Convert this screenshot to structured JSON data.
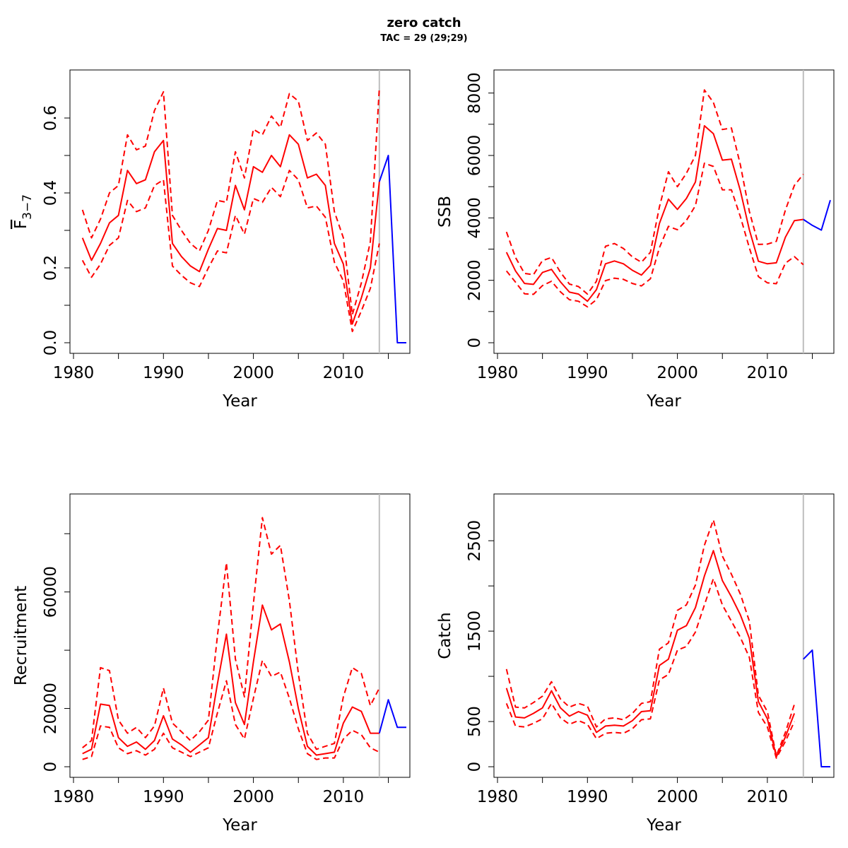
{
  "title": "zero catch",
  "subtitle": "TAC = 29 (29;29)",
  "colors": {
    "estimate": "#ff0000",
    "forecast": "#0000ff",
    "divider": "#bebebe",
    "axis": "#000000"
  },
  "chart_data": [
    {
      "type": "line",
      "panel": "top-left",
      "ylabel_main": "F",
      "ylabel_sub": "3−7",
      "xlabel": "Year",
      "xlim": [
        1980,
        2017
      ],
      "ylim": [
        0,
        0.7
      ],
      "x_ticks": [
        1980,
        1990,
        2000,
        2010
      ],
      "y_ticks": [
        0.0,
        0.2,
        0.4,
        0.6
      ],
      "y_tick_labels": [
        "0.0",
        "0.2",
        "0.4",
        "0.6"
      ],
      "y_minor_ticks": [
        0.1,
        0.3,
        0.5
      ],
      "divider_x": 2014,
      "series": [
        {
          "role": "estimate",
          "x": [
            1981,
            1982,
            1983,
            1984,
            1985,
            1986,
            1987,
            1988,
            1989,
            1990,
            1991,
            1992,
            1993,
            1994,
            1995,
            1996,
            1997,
            1998,
            1999,
            2000,
            2001,
            2002,
            2003,
            2004,
            2005,
            2006,
            2007,
            2008,
            2009,
            2010,
            2011,
            2012,
            2013,
            2014
          ],
          "values": [
            0.28,
            0.22,
            0.265,
            0.32,
            0.34,
            0.46,
            0.425,
            0.435,
            0.51,
            0.54,
            0.265,
            0.23,
            0.205,
            0.19,
            0.25,
            0.305,
            0.3,
            0.42,
            0.355,
            0.47,
            0.455,
            0.5,
            0.47,
            0.555,
            0.53,
            0.44,
            0.45,
            0.42,
            0.265,
            0.21,
            0.05,
            0.12,
            0.2,
            0.43
          ]
        },
        {
          "role": "upper",
          "x": [
            1981,
            1982,
            1983,
            1984,
            1985,
            1986,
            1987,
            1988,
            1989,
            1990,
            1991,
            1992,
            1993,
            1994,
            1995,
            1996,
            1997,
            1998,
            1999,
            2000,
            2001,
            2002,
            2003,
            2004,
            2005,
            2006,
            2007,
            2008,
            2009,
            2010,
            2011,
            2012,
            2013,
            2014
          ],
          "values": [
            0.355,
            0.28,
            0.33,
            0.4,
            0.42,
            0.555,
            0.515,
            0.525,
            0.62,
            0.67,
            0.34,
            0.3,
            0.265,
            0.245,
            0.3,
            0.38,
            0.375,
            0.51,
            0.44,
            0.57,
            0.555,
            0.605,
            0.575,
            0.665,
            0.645,
            0.54,
            0.56,
            0.53,
            0.35,
            0.28,
            0.075,
            0.16,
            0.27,
            0.68
          ]
        },
        {
          "role": "lower",
          "x": [
            1981,
            1982,
            1983,
            1984,
            1985,
            1986,
            1987,
            1988,
            1989,
            1990,
            1991,
            1992,
            1993,
            1994,
            1995,
            1996,
            1997,
            1998,
            1999,
            2000,
            2001,
            2002,
            2003,
            2004,
            2005,
            2006,
            2007,
            2008,
            2009,
            2010,
            2011,
            2012,
            2013,
            2014
          ],
          "values": [
            0.22,
            0.175,
            0.21,
            0.26,
            0.28,
            0.38,
            0.35,
            0.36,
            0.42,
            0.435,
            0.205,
            0.18,
            0.16,
            0.15,
            0.2,
            0.245,
            0.24,
            0.34,
            0.29,
            0.385,
            0.375,
            0.415,
            0.39,
            0.46,
            0.435,
            0.36,
            0.365,
            0.335,
            0.215,
            0.165,
            0.03,
            0.085,
            0.145,
            0.265
          ]
        },
        {
          "role": "forecast",
          "x": [
            2014,
            2015,
            2016,
            2017
          ],
          "values": [
            0.43,
            0.5,
            0.0,
            0.0
          ]
        }
      ]
    },
    {
      "type": "line",
      "panel": "top-right",
      "ylabel_main": "SSB",
      "ylabel_sub": "",
      "xlabel": "Year",
      "xlim": [
        1980,
        2017
      ],
      "ylim": [
        0,
        8400
      ],
      "x_ticks": [
        1980,
        1990,
        2000,
        2010
      ],
      "y_ticks": [
        0,
        2000,
        4000,
        6000,
        8000
      ],
      "y_tick_labels": [
        "0",
        "2000",
        "4000",
        "6000",
        "8000"
      ],
      "y_minor_ticks": [
        1000,
        3000,
        5000,
        7000
      ],
      "divider_x": 2014,
      "series": [
        {
          "role": "estimate",
          "x": [
            1981,
            1982,
            1983,
            1984,
            1985,
            1986,
            1987,
            1988,
            1989,
            1990,
            1991,
            1992,
            1993,
            1994,
            1995,
            1996,
            1997,
            1998,
            1999,
            2000,
            2001,
            2002,
            2003,
            2004,
            2005,
            2006,
            2007,
            2008,
            2009,
            2010,
            2011,
            2012,
            2013,
            2014
          ],
          "values": [
            2900,
            2300,
            1900,
            1870,
            2250,
            2350,
            1950,
            1620,
            1560,
            1330,
            1700,
            2530,
            2620,
            2530,
            2320,
            2170,
            2480,
            3820,
            4600,
            4270,
            4620,
            5150,
            6950,
            6700,
            5850,
            5880,
            4870,
            3620,
            2610,
            2530,
            2560,
            3380,
            3910,
            3950
          ]
        },
        {
          "role": "upper",
          "x": [
            1981,
            1982,
            1983,
            1984,
            1985,
            1986,
            1987,
            1988,
            1989,
            1990,
            1991,
            1992,
            1993,
            1994,
            1995,
            1996,
            1997,
            1998,
            1999,
            2000,
            2001,
            2002,
            2003,
            2004,
            2005,
            2006,
            2007,
            2008,
            2009,
            2010,
            2011,
            2012,
            2013,
            2014
          ],
          "values": [
            3550,
            2730,
            2220,
            2180,
            2630,
            2730,
            2260,
            1880,
            1800,
            1560,
            1970,
            3090,
            3180,
            3020,
            2750,
            2580,
            2900,
            4350,
            5480,
            5000,
            5430,
            6000,
            8100,
            7700,
            6830,
            6880,
            5700,
            4210,
            3150,
            3160,
            3250,
            4250,
            5040,
            5400
          ]
        },
        {
          "role": "lower",
          "x": [
            1981,
            1982,
            1983,
            1984,
            1985,
            1986,
            1987,
            1988,
            1989,
            1990,
            1991,
            1992,
            1993,
            1994,
            1995,
            1996,
            1997,
            1998,
            1999,
            2000,
            2001,
            2002,
            2003,
            2004,
            2005,
            2006,
            2007,
            2008,
            2009,
            2010,
            2011,
            2012,
            2013,
            2014
          ],
          "values": [
            2300,
            1940,
            1570,
            1550,
            1830,
            1970,
            1630,
            1380,
            1330,
            1150,
            1380,
            1990,
            2070,
            2030,
            1900,
            1820,
            2050,
            3040,
            3730,
            3620,
            3920,
            4390,
            5750,
            5650,
            4900,
            4900,
            4040,
            3040,
            2120,
            1920,
            1890,
            2550,
            2760,
            2500
          ]
        },
        {
          "role": "forecast",
          "x": [
            2014,
            2015,
            2016,
            2017
          ],
          "values": [
            3950,
            3760,
            3610,
            4570
          ]
        }
      ]
    },
    {
      "type": "line",
      "panel": "bottom-left",
      "ylabel_main": "Recruitment",
      "ylabel_sub": "",
      "xlabel": "Year",
      "xlim": [
        1980,
        2017
      ],
      "ylim": [
        0,
        90000
      ],
      "x_ticks": [
        1980,
        1990,
        2000,
        2010
      ],
      "y_ticks": [
        0,
        20000,
        60000
      ],
      "y_tick_labels": [
        "0",
        "20000",
        "60000"
      ],
      "y_minor_ticks": [
        40000,
        80000
      ],
      "divider_x": 2014,
      "series": [
        {
          "role": "estimate",
          "x": [
            1981,
            1982,
            1983,
            1984,
            1985,
            1986,
            1987,
            1988,
            1989,
            1990,
            1991,
            1992,
            1993,
            1994,
            1995,
            1996,
            1997,
            1998,
            1999,
            2000,
            2001,
            2002,
            2003,
            2004,
            2005,
            2006,
            2007,
            2008,
            2009,
            2010,
            2011,
            2012,
            2013,
            2014
          ],
          "values": [
            4500,
            6000,
            21500,
            21000,
            10000,
            7000,
            8500,
            6000,
            9000,
            17500,
            9500,
            7500,
            5000,
            7500,
            10000,
            28500,
            45500,
            22000,
            14500,
            36000,
            55500,
            47000,
            49000,
            36000,
            20000,
            7000,
            4000,
            4500,
            5000,
            15000,
            20500,
            19000,
            11500,
            11500
          ]
        },
        {
          "role": "upper",
          "x": [
            1981,
            1982,
            1983,
            1984,
            1985,
            1986,
            1987,
            1988,
            1989,
            1990,
            1991,
            1992,
            1993,
            1994,
            1995,
            1996,
            1997,
            1998,
            1999,
            2000,
            2001,
            2002,
            2003,
            2004,
            2005,
            2006,
            2007,
            2008,
            2009,
            2010,
            2011,
            2012,
            2013,
            2014
          ],
          "values": [
            6500,
            9000,
            34000,
            33000,
            16000,
            11500,
            13500,
            10000,
            14000,
            27000,
            15000,
            12000,
            9000,
            12000,
            16000,
            45000,
            70000,
            37000,
            24000,
            56000,
            85500,
            73000,
            76000,
            57000,
            32000,
            11500,
            6000,
            7000,
            8000,
            24000,
            34000,
            32000,
            21000,
            27000
          ]
        },
        {
          "role": "lower",
          "x": [
            1981,
            1982,
            1983,
            1984,
            1985,
            1986,
            1987,
            1988,
            1989,
            1990,
            1991,
            1992,
            1993,
            1994,
            1995,
            1996,
            1997,
            1998,
            1999,
            2000,
            2001,
            2002,
            2003,
            2004,
            2005,
            2006,
            2007,
            2008,
            2009,
            2010,
            2011,
            2012,
            2013,
            2014
          ],
          "values": [
            2500,
            3500,
            14000,
            13500,
            6500,
            4500,
            5500,
            4000,
            6000,
            11500,
            6500,
            5000,
            3500,
            5000,
            6500,
            18500,
            29500,
            14500,
            9500,
            23500,
            36500,
            31000,
            32500,
            23500,
            13000,
            4500,
            2500,
            3000,
            3000,
            9500,
            12500,
            11000,
            6500,
            5000
          ]
        },
        {
          "role": "forecast",
          "x": [
            2014,
            2015,
            2016,
            2017
          ],
          "values": [
            11500,
            23000,
            13500,
            13500
          ]
        }
      ]
    },
    {
      "type": "line",
      "panel": "bottom-right",
      "ylabel_main": "Catch",
      "ylabel_sub": "",
      "xlabel": "Year",
      "xlim": [
        1980,
        2017
      ],
      "ylim": [
        0,
        2900
      ],
      "x_ticks": [
        1980,
        1990,
        2000,
        2010
      ],
      "y_ticks": [
        0,
        500,
        1500,
        2500
      ],
      "y_tick_labels": [
        "0",
        "500",
        "1500",
        "2500"
      ],
      "y_minor_ticks": [
        1000,
        2000
      ],
      "divider_x": 2014,
      "series": [
        {
          "role": "estimate",
          "x": [
            1981,
            1982,
            1983,
            1984,
            1985,
            1986,
            1987,
            1988,
            1989,
            1990,
            1991,
            1992,
            1993,
            1994,
            1995,
            1996,
            1997,
            1998,
            1999,
            2000,
            2001,
            2002,
            2003,
            2004,
            2005,
            2006,
            2007,
            2008,
            2009,
            2010,
            2011,
            2012,
            2013
          ],
          "values": [
            870,
            550,
            540,
            590,
            650,
            840,
            650,
            560,
            610,
            570,
            380,
            450,
            460,
            450,
            510,
            610,
            620,
            1120,
            1190,
            1510,
            1560,
            1760,
            2110,
            2390,
            2060,
            1880,
            1680,
            1420,
            720,
            530,
            110,
            330,
            590
          ]
        },
        {
          "role": "upper",
          "x": [
            1981,
            1982,
            1983,
            1984,
            1985,
            1986,
            1987,
            1988,
            1989,
            1990,
            1991,
            1992,
            1993,
            1994,
            1995,
            1996,
            1997,
            1998,
            1999,
            2000,
            2001,
            2002,
            2003,
            2004,
            2005,
            2006,
            2007,
            2008,
            2009,
            2010,
            2011,
            2012,
            2013
          ],
          "values": [
            1080,
            660,
            650,
            710,
            780,
            940,
            750,
            660,
            700,
            670,
            440,
            530,
            540,
            520,
            590,
            700,
            720,
            1300,
            1370,
            1730,
            1790,
            2010,
            2450,
            2730,
            2330,
            2130,
            1910,
            1610,
            790,
            610,
            120,
            380,
            690
          ]
        },
        {
          "role": "lower",
          "x": [
            1981,
            1982,
            1983,
            1984,
            1985,
            1986,
            1987,
            1988,
            1989,
            1990,
            1991,
            1992,
            1993,
            1994,
            1995,
            1996,
            1997,
            1998,
            1999,
            2000,
            2001,
            2002,
            2003,
            2004,
            2005,
            2006,
            2007,
            2008,
            2009,
            2010,
            2011,
            2012,
            2013
          ],
          "values": [
            700,
            450,
            440,
            480,
            530,
            700,
            540,
            470,
            510,
            470,
            310,
            370,
            380,
            370,
            420,
            520,
            530,
            960,
            1020,
            1290,
            1330,
            1490,
            1790,
            2080,
            1790,
            1610,
            1430,
            1210,
            600,
            440,
            95,
            280,
            500
          ]
        },
        {
          "role": "forecast",
          "x": [
            2014,
            2015,
            2016,
            2017
          ],
          "values": [
            1190,
            1290,
            0,
            0
          ]
        }
      ]
    }
  ]
}
